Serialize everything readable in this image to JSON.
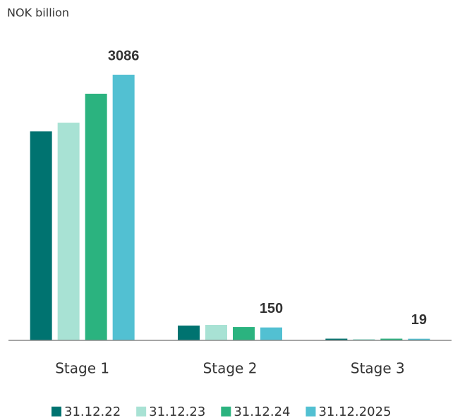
{
  "chart_data": {
    "type": "bar",
    "subtitle": "NOK billion",
    "categories": [
      "Stage 1",
      "Stage 2",
      "Stage 3"
    ],
    "series": [
      {
        "name": "31.12.22",
        "color": "#007370",
        "values": [
          2428,
          172,
          20
        ]
      },
      {
        "name": "31.12.23",
        "color": "#a8e2d4",
        "values": [
          2529,
          180,
          15
        ]
      },
      {
        "name": "31.12.24",
        "color": "#2bb37f",
        "values": [
          2865,
          155,
          20
        ]
      },
      {
        "name": "31.12.2025",
        "color": "#52c0d2",
        "values": [
          3086,
          150,
          19
        ],
        "show_labels": true
      }
    ],
    "legend": "bottom"
  }
}
